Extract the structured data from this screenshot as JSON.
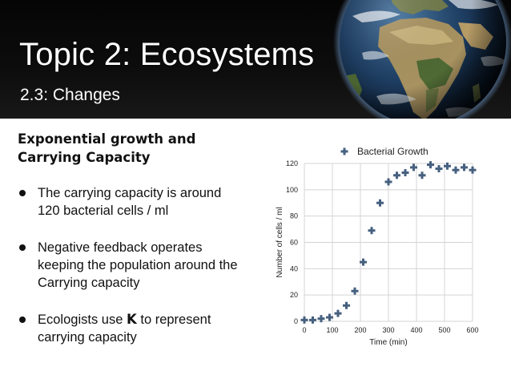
{
  "slide": {
    "title": "Topic 2: Ecosystems",
    "subtitle": "2.3: Changes",
    "heading_line1": "Exponential growth and",
    "heading_line2": "Carrying Capacity",
    "bullets": [
      {
        "line1": "The carrying capacity is around",
        "line2": "120 bacterial cells / ml"
      },
      {
        "line1": "Negative feedback operates",
        "line2": "keeping the population around the",
        "line3": "Carrying capacity"
      },
      {
        "pre": "Ecologists use ",
        "strong": "K",
        "post": " to represent",
        "line2": "carrying capacity"
      }
    ]
  },
  "colors": {
    "marker": "#46607f",
    "axis_text": "#222222",
    "grid": "#d4d4d4"
  },
  "chart_data": {
    "type": "scatter",
    "title": "",
    "xlabel": "Time (min)",
    "ylabel": "Number of cells / ml",
    "xlim": [
      0,
      600
    ],
    "ylim": [
      0,
      120
    ],
    "xticks": [
      0,
      100,
      200,
      300,
      400,
      500,
      600
    ],
    "yticks": [
      0,
      20,
      40,
      60,
      80,
      100,
      120
    ],
    "grid": true,
    "legend": "top-right",
    "series": [
      {
        "name": "Bacterial Growth",
        "x": [
          0,
          30,
          60,
          90,
          120,
          150,
          180,
          210,
          240,
          270,
          300,
          330,
          360,
          390,
          420,
          450,
          480,
          510,
          540,
          570,
          600
        ],
        "y": [
          1,
          1,
          2,
          3,
          6,
          12,
          23,
          45,
          69,
          90,
          106,
          111,
          113,
          117,
          111,
          119,
          116,
          118,
          115,
          117,
          115
        ]
      }
    ]
  }
}
